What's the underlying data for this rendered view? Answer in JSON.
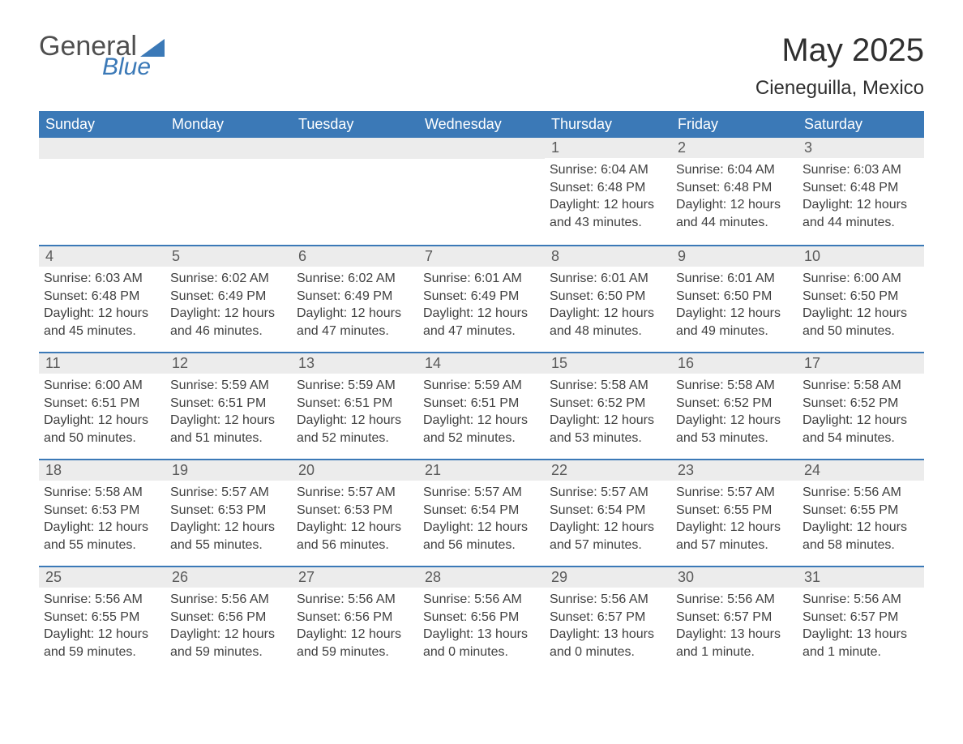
{
  "brand": {
    "general": "General",
    "blue": "Blue"
  },
  "colors": {
    "brand_blue": "#3b79b7",
    "header_text": "#ffffff",
    "daynum_bg": "#ececec",
    "body_text": "#404040",
    "page_bg": "#ffffff",
    "rule": "#3b79b7"
  },
  "typography": {
    "month_title_pt": 40,
    "location_pt": 24,
    "weekday_pt": 18,
    "daynum_pt": 18,
    "body_pt": 16,
    "font_family": "Arial"
  },
  "layout": {
    "columns": 7,
    "rows": 5,
    "first_day_column_index": 4
  },
  "title": "May 2025",
  "location": "Cieneguilla, Mexico",
  "weekdays": [
    "Sunday",
    "Monday",
    "Tuesday",
    "Wednesday",
    "Thursday",
    "Friday",
    "Saturday"
  ],
  "days": [
    {
      "n": "1",
      "sunrise": "Sunrise: 6:04 AM",
      "sunset": "Sunset: 6:48 PM",
      "daylight": "Daylight: 12 hours and 43 minutes."
    },
    {
      "n": "2",
      "sunrise": "Sunrise: 6:04 AM",
      "sunset": "Sunset: 6:48 PM",
      "daylight": "Daylight: 12 hours and 44 minutes."
    },
    {
      "n": "3",
      "sunrise": "Sunrise: 6:03 AM",
      "sunset": "Sunset: 6:48 PM",
      "daylight": "Daylight: 12 hours and 44 minutes."
    },
    {
      "n": "4",
      "sunrise": "Sunrise: 6:03 AM",
      "sunset": "Sunset: 6:48 PM",
      "daylight": "Daylight: 12 hours and 45 minutes."
    },
    {
      "n": "5",
      "sunrise": "Sunrise: 6:02 AM",
      "sunset": "Sunset: 6:49 PM",
      "daylight": "Daylight: 12 hours and 46 minutes."
    },
    {
      "n": "6",
      "sunrise": "Sunrise: 6:02 AM",
      "sunset": "Sunset: 6:49 PM",
      "daylight": "Daylight: 12 hours and 47 minutes."
    },
    {
      "n": "7",
      "sunrise": "Sunrise: 6:01 AM",
      "sunset": "Sunset: 6:49 PM",
      "daylight": "Daylight: 12 hours and 47 minutes."
    },
    {
      "n": "8",
      "sunrise": "Sunrise: 6:01 AM",
      "sunset": "Sunset: 6:50 PM",
      "daylight": "Daylight: 12 hours and 48 minutes."
    },
    {
      "n": "9",
      "sunrise": "Sunrise: 6:01 AM",
      "sunset": "Sunset: 6:50 PM",
      "daylight": "Daylight: 12 hours and 49 minutes."
    },
    {
      "n": "10",
      "sunrise": "Sunrise: 6:00 AM",
      "sunset": "Sunset: 6:50 PM",
      "daylight": "Daylight: 12 hours and 50 minutes."
    },
    {
      "n": "11",
      "sunrise": "Sunrise: 6:00 AM",
      "sunset": "Sunset: 6:51 PM",
      "daylight": "Daylight: 12 hours and 50 minutes."
    },
    {
      "n": "12",
      "sunrise": "Sunrise: 5:59 AM",
      "sunset": "Sunset: 6:51 PM",
      "daylight": "Daylight: 12 hours and 51 minutes."
    },
    {
      "n": "13",
      "sunrise": "Sunrise: 5:59 AM",
      "sunset": "Sunset: 6:51 PM",
      "daylight": "Daylight: 12 hours and 52 minutes."
    },
    {
      "n": "14",
      "sunrise": "Sunrise: 5:59 AM",
      "sunset": "Sunset: 6:51 PM",
      "daylight": "Daylight: 12 hours and 52 minutes."
    },
    {
      "n": "15",
      "sunrise": "Sunrise: 5:58 AM",
      "sunset": "Sunset: 6:52 PM",
      "daylight": "Daylight: 12 hours and 53 minutes."
    },
    {
      "n": "16",
      "sunrise": "Sunrise: 5:58 AM",
      "sunset": "Sunset: 6:52 PM",
      "daylight": "Daylight: 12 hours and 53 minutes."
    },
    {
      "n": "17",
      "sunrise": "Sunrise: 5:58 AM",
      "sunset": "Sunset: 6:52 PM",
      "daylight": "Daylight: 12 hours and 54 minutes."
    },
    {
      "n": "18",
      "sunrise": "Sunrise: 5:58 AM",
      "sunset": "Sunset: 6:53 PM",
      "daylight": "Daylight: 12 hours and 55 minutes."
    },
    {
      "n": "19",
      "sunrise": "Sunrise: 5:57 AM",
      "sunset": "Sunset: 6:53 PM",
      "daylight": "Daylight: 12 hours and 55 minutes."
    },
    {
      "n": "20",
      "sunrise": "Sunrise: 5:57 AM",
      "sunset": "Sunset: 6:53 PM",
      "daylight": "Daylight: 12 hours and 56 minutes."
    },
    {
      "n": "21",
      "sunrise": "Sunrise: 5:57 AM",
      "sunset": "Sunset: 6:54 PM",
      "daylight": "Daylight: 12 hours and 56 minutes."
    },
    {
      "n": "22",
      "sunrise": "Sunrise: 5:57 AM",
      "sunset": "Sunset: 6:54 PM",
      "daylight": "Daylight: 12 hours and 57 minutes."
    },
    {
      "n": "23",
      "sunrise": "Sunrise: 5:57 AM",
      "sunset": "Sunset: 6:55 PM",
      "daylight": "Daylight: 12 hours and 57 minutes."
    },
    {
      "n": "24",
      "sunrise": "Sunrise: 5:56 AM",
      "sunset": "Sunset: 6:55 PM",
      "daylight": "Daylight: 12 hours and 58 minutes."
    },
    {
      "n": "25",
      "sunrise": "Sunrise: 5:56 AM",
      "sunset": "Sunset: 6:55 PM",
      "daylight": "Daylight: 12 hours and 59 minutes."
    },
    {
      "n": "26",
      "sunrise": "Sunrise: 5:56 AM",
      "sunset": "Sunset: 6:56 PM",
      "daylight": "Daylight: 12 hours and 59 minutes."
    },
    {
      "n": "27",
      "sunrise": "Sunrise: 5:56 AM",
      "sunset": "Sunset: 6:56 PM",
      "daylight": "Daylight: 12 hours and 59 minutes."
    },
    {
      "n": "28",
      "sunrise": "Sunrise: 5:56 AM",
      "sunset": "Sunset: 6:56 PM",
      "daylight": "Daylight: 13 hours and 0 minutes."
    },
    {
      "n": "29",
      "sunrise": "Sunrise: 5:56 AM",
      "sunset": "Sunset: 6:57 PM",
      "daylight": "Daylight: 13 hours and 0 minutes."
    },
    {
      "n": "30",
      "sunrise": "Sunrise: 5:56 AM",
      "sunset": "Sunset: 6:57 PM",
      "daylight": "Daylight: 13 hours and 1 minute."
    },
    {
      "n": "31",
      "sunrise": "Sunrise: 5:56 AM",
      "sunset": "Sunset: 6:57 PM",
      "daylight": "Daylight: 13 hours and 1 minute."
    }
  ]
}
